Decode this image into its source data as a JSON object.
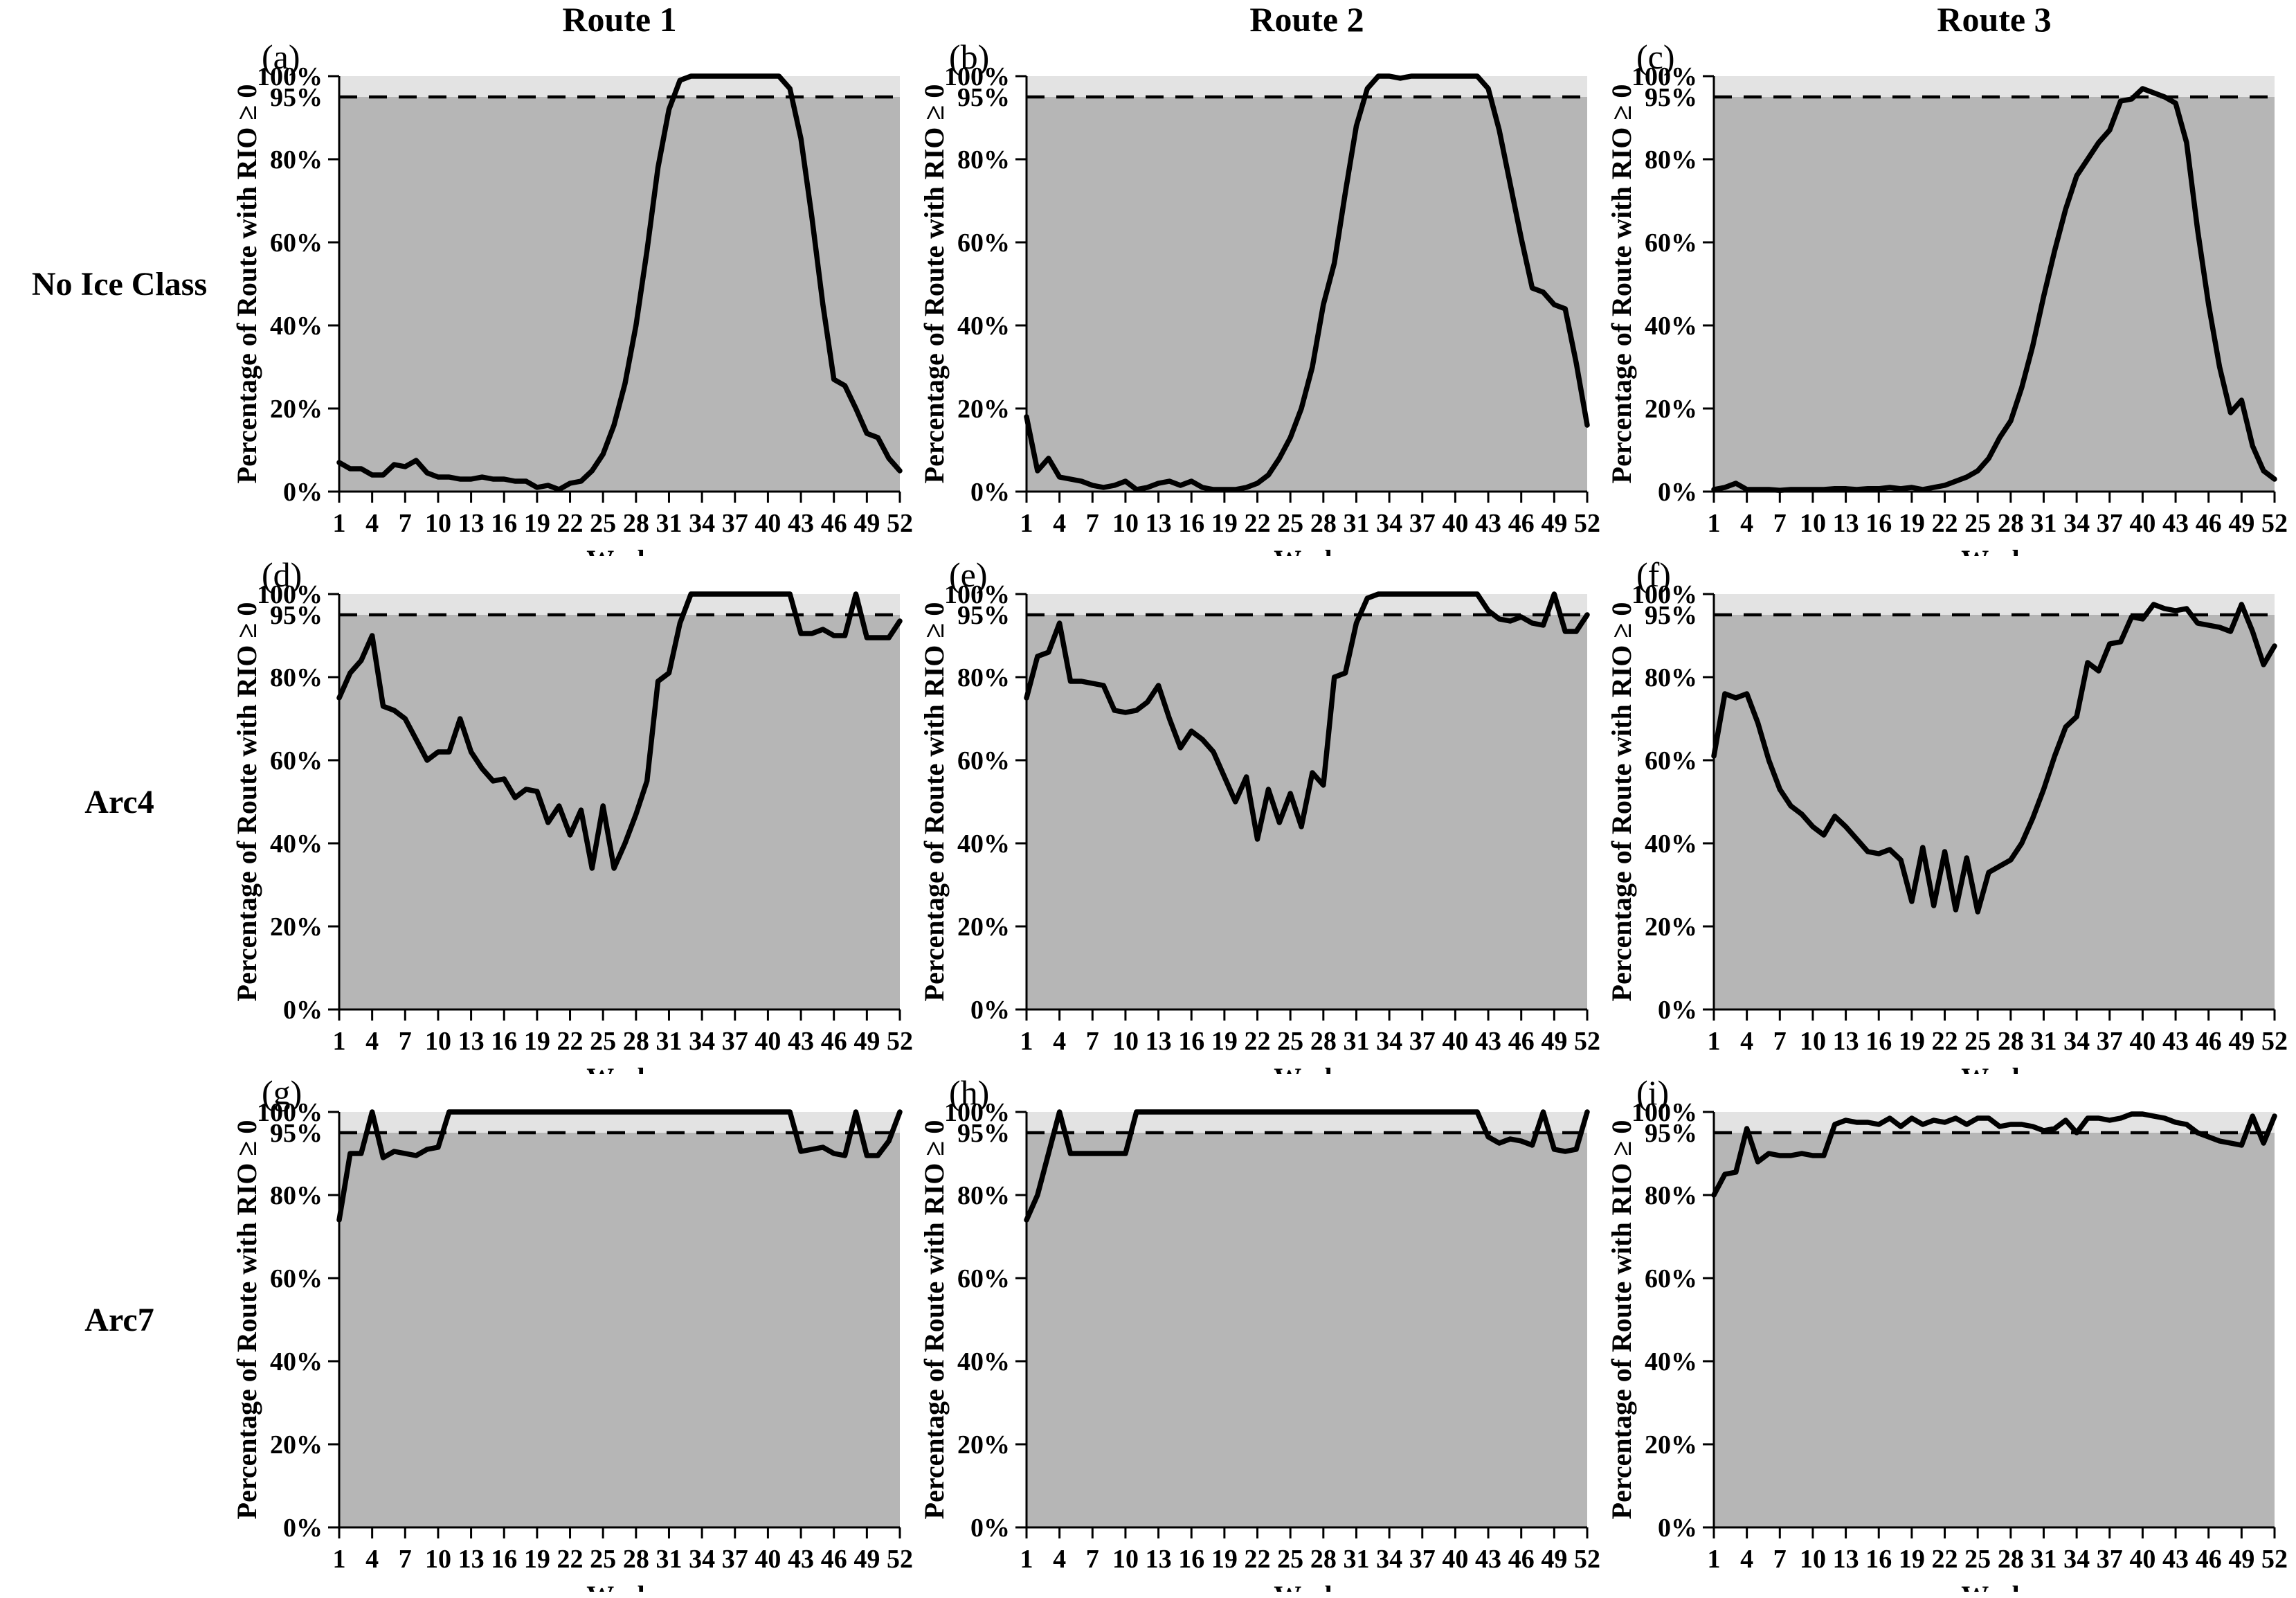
{
  "figure_title": "",
  "columns": [
    "Route 1",
    "Route 2",
    "Route 3"
  ],
  "rows": [
    "No Ice Class",
    "Arc4",
    "Arc7"
  ],
  "chart_common": {
    "type": "line",
    "xlabel": "Week",
    "ylabel": "Percentage of Route with RIO ≥ 0",
    "x": [
      1,
      2,
      3,
      4,
      5,
      6,
      7,
      8,
      9,
      10,
      11,
      12,
      13,
      14,
      15,
      16,
      17,
      18,
      19,
      20,
      21,
      22,
      23,
      24,
      25,
      26,
      27,
      28,
      29,
      30,
      31,
      32,
      33,
      34,
      35,
      36,
      37,
      38,
      39,
      40,
      41,
      42,
      43,
      44,
      45,
      46,
      47,
      48,
      49,
      50,
      51,
      52
    ],
    "x_ticks": [
      1,
      4,
      7,
      10,
      13,
      16,
      19,
      22,
      25,
      28,
      31,
      34,
      37,
      40,
      43,
      46,
      49,
      52
    ],
    "y_ticks": [
      {
        "value": 0,
        "label": "0%"
      },
      {
        "value": 20,
        "label": "20%"
      },
      {
        "value": 40,
        "label": "40%"
      },
      {
        "value": 60,
        "label": "60%"
      },
      {
        "value": 80,
        "label": "80%"
      },
      {
        "value": 95,
        "label": "95%",
        "tick": false
      },
      {
        "value": 100,
        "label": "100%"
      }
    ],
    "xlim": [
      1,
      52
    ],
    "ylim": [
      0,
      100
    ],
    "grid": false,
    "legend": "none",
    "threshold": {
      "value": 95,
      "style": "dashed"
    },
    "colors": {
      "line": "#000000",
      "axis": "#000000",
      "band_below_95": "#b6b6b6",
      "band_above_95": "#e3e3e3",
      "background": "#ffffff"
    }
  },
  "chart_data": [
    {
      "panel": "(a)",
      "row": "No Ice Class",
      "column": "Route 1",
      "values": [
        7,
        5.5,
        5.5,
        4,
        4,
        6.5,
        6,
        7.5,
        4.5,
        3.5,
        3.5,
        3,
        3,
        3.5,
        3,
        3,
        2.5,
        2.5,
        1,
        1.5,
        0.5,
        2,
        2.5,
        5,
        9,
        16,
        26,
        40,
        58,
        78,
        92,
        99,
        100,
        100,
        100,
        100,
        100,
        100,
        100,
        100,
        100,
        97,
        85,
        66,
        45,
        27,
        25.5,
        20,
        14,
        13,
        8,
        5
      ]
    },
    {
      "panel": "(b)",
      "row": "No Ice Class",
      "column": "Route 2",
      "values": [
        18,
        5,
        8,
        3.5,
        3,
        2.5,
        1.5,
        1,
        1.5,
        2.5,
        0.5,
        1,
        2,
        2.5,
        1.5,
        2.5,
        1,
        0.5,
        0.5,
        0.5,
        1,
        2,
        4,
        8,
        13,
        20,
        30,
        45,
        55,
        72,
        88,
        97,
        100,
        100,
        99.5,
        100,
        100,
        100,
        100,
        100,
        100,
        100,
        97,
        87,
        74,
        61,
        49,
        48,
        45,
        44,
        31,
        16
      ]
    },
    {
      "panel": "(c)",
      "row": "No Ice Class",
      "column": "Route 3",
      "values": [
        0.5,
        1,
        2,
        0.5,
        0.5,
        0.5,
        0.3,
        0.5,
        0.5,
        0.5,
        0.5,
        0.7,
        0.7,
        0.5,
        0.7,
        0.7,
        1,
        0.7,
        1,
        0.5,
        1,
        1.5,
        2.5,
        3.5,
        5,
        8,
        13,
        17,
        25,
        35,
        47,
        58,
        68,
        76,
        80,
        84,
        87,
        94,
        94.5,
        97,
        96,
        95,
        93.5,
        84,
        63,
        45,
        30,
        19,
        22,
        11,
        5,
        3
      ]
    },
    {
      "panel": "(d)",
      "row": "Arc4",
      "column": "Route 1",
      "values": [
        75,
        81,
        84,
        90,
        73,
        72,
        70,
        65,
        60,
        62,
        62,
        70,
        62,
        58,
        55,
        55.5,
        51,
        53,
        52.5,
        45,
        49,
        42,
        48,
        34,
        49,
        34,
        40,
        47,
        55,
        79,
        81,
        93,
        100,
        100,
        100,
        100,
        100,
        100,
        100,
        100,
        100,
        100,
        90.5,
        90.5,
        91.5,
        90,
        90,
        100,
        89.5,
        89.5,
        89.5,
        93.5
      ]
    },
    {
      "panel": "(e)",
      "row": "Arc4",
      "column": "Route 2",
      "values": [
        75,
        85,
        86,
        93,
        79,
        79,
        78.5,
        78,
        72,
        71.5,
        72,
        74,
        78,
        70,
        63,
        67,
        65,
        62,
        56,
        50,
        56,
        41,
        53,
        45,
        52,
        44,
        57,
        54,
        80,
        81,
        93,
        99,
        100,
        100,
        100,
        100,
        100,
        100,
        100,
        100,
        100,
        100,
        96,
        94,
        93.5,
        94.5,
        93,
        92.5,
        100,
        91,
        91,
        95
      ]
    },
    {
      "panel": "(f)",
      "row": "Arc4",
      "column": "Route 3",
      "values": [
        61,
        76,
        75,
        76,
        69,
        60,
        53,
        49,
        47,
        44,
        42,
        46.5,
        44,
        41,
        38,
        37.5,
        38.5,
        36,
        26,
        39,
        25,
        38,
        24,
        36.5,
        23.5,
        33,
        34.5,
        36,
        40,
        46,
        53,
        61,
        68,
        70.5,
        83.5,
        81.5,
        88,
        88.5,
        94.5,
        94,
        97.5,
        96.5,
        96,
        96.5,
        93,
        92.5,
        92,
        91,
        97.5,
        91,
        83,
        87.5
      ]
    },
    {
      "panel": "(g)",
      "row": "Arc7",
      "column": "Route 1",
      "values": [
        74,
        90,
        90,
        100,
        89,
        90.5,
        90,
        89.5,
        91,
        91.5,
        100,
        100,
        100,
        100,
        100,
        100,
        100,
        100,
        100,
        100,
        100,
        100,
        100,
        100,
        100,
        100,
        100,
        100,
        100,
        100,
        100,
        100,
        100,
        100,
        100,
        100,
        100,
        100,
        100,
        100,
        100,
        100,
        90.5,
        91,
        91.5,
        90,
        89.5,
        100,
        89.5,
        89.5,
        93,
        100
      ]
    },
    {
      "panel": "(h)",
      "row": "Arc7",
      "column": "Route 2",
      "values": [
        74,
        80,
        90,
        100,
        90,
        90,
        90,
        90,
        90,
        90,
        100,
        100,
        100,
        100,
        100,
        100,
        100,
        100,
        100,
        100,
        100,
        100,
        100,
        100,
        100,
        100,
        100,
        100,
        100,
        100,
        100,
        100,
        100,
        100,
        100,
        100,
        100,
        100,
        100,
        100,
        100,
        100,
        94,
        92.5,
        93.5,
        93,
        92,
        100,
        91,
        90.5,
        91,
        100
      ]
    },
    {
      "panel": "(i)",
      "row": "Arc7",
      "column": "Route 3",
      "values": [
        80,
        85,
        85.5,
        96,
        88,
        90,
        89.5,
        89.5,
        90,
        89.5,
        89.5,
        97,
        98,
        97.5,
        97.5,
        97,
        98.5,
        96.5,
        98.5,
        97,
        98,
        97.5,
        98.5,
        97,
        98.5,
        98.5,
        96.5,
        97,
        97,
        96.5,
        95.5,
        96,
        98,
        95,
        98.5,
        98.5,
        98,
        98.5,
        99.5,
        99.5,
        99,
        98.5,
        97.5,
        97,
        95,
        94,
        93,
        92.5,
        92,
        99,
        92.5,
        99
      ]
    }
  ]
}
